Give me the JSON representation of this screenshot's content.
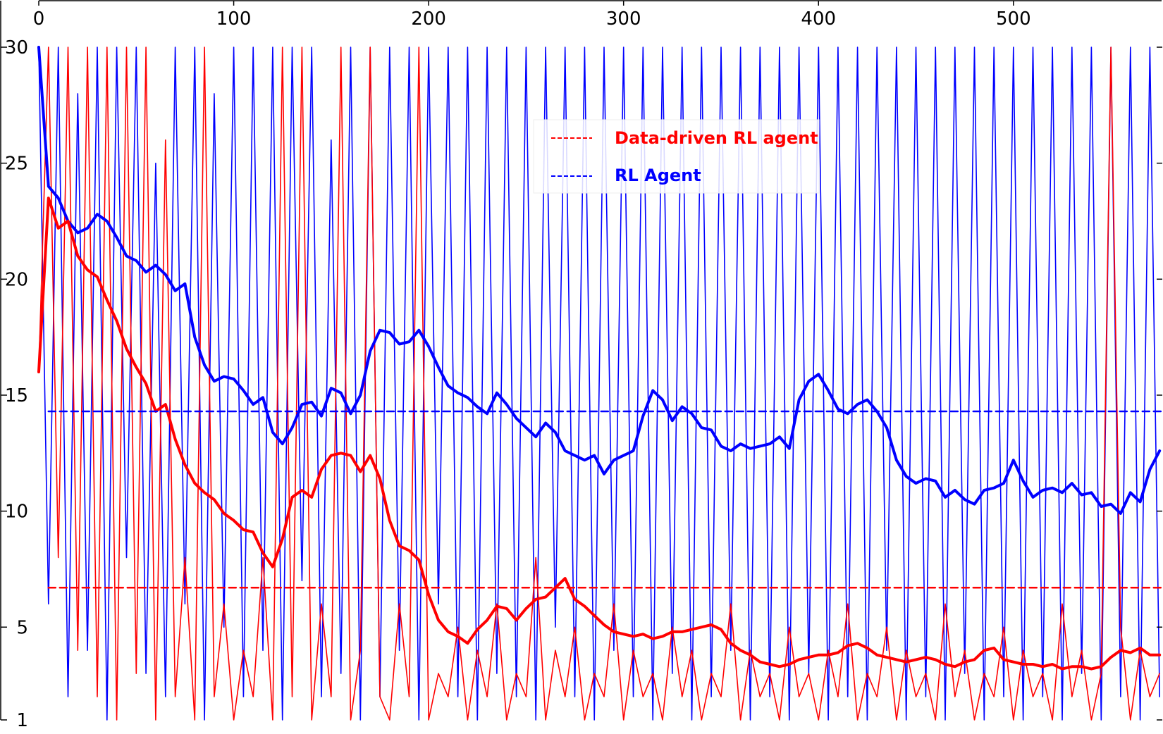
{
  "chart_data": {
    "type": "line",
    "title": "",
    "xlabel": "",
    "ylabel": "",
    "xlim": [
      0,
      576
    ],
    "ylim": [
      1,
      30
    ],
    "x_ticks": [
      0,
      100,
      200,
      300,
      400,
      500
    ],
    "y_ticks": [
      1,
      5,
      10,
      15,
      20,
      25,
      30
    ],
    "x_axis_position": "top",
    "grid": false,
    "legend": {
      "position": "upper-center",
      "entries": [
        {
          "label": "Data-driven RL agent",
          "color": "#ff0000",
          "style": "dashed"
        },
        {
          "label": "RL Agent",
          "color": "#0000ff",
          "style": "dashed"
        }
      ]
    },
    "series": [
      {
        "name": "RL Agent",
        "role": "raw",
        "color": "#0000ff",
        "style": "solid",
        "x": [
          0,
          5,
          10,
          15,
          20,
          25,
          30,
          35,
          40,
          45,
          50,
          55,
          60,
          65,
          70,
          75,
          80,
          85,
          90,
          95,
          100,
          105,
          110,
          115,
          120,
          125,
          130,
          135,
          140,
          145,
          150,
          155,
          160,
          165,
          170,
          175,
          180,
          185,
          190,
          195,
          200,
          205,
          210,
          215,
          220,
          225,
          230,
          235,
          240,
          245,
          250,
          255,
          260,
          265,
          270,
          275,
          280,
          285,
          290,
          295,
          300,
          305,
          310,
          315,
          320,
          325,
          330,
          335,
          340,
          345,
          350,
          355,
          360,
          365,
          370,
          375,
          380,
          385,
          390,
          395,
          400,
          405,
          410,
          415,
          420,
          425,
          430,
          435,
          440,
          445,
          450,
          455,
          460,
          465,
          470,
          475,
          480,
          485,
          490,
          495,
          500,
          505,
          510,
          515,
          520,
          525,
          530,
          535,
          540,
          545,
          550,
          555,
          560,
          565,
          570,
          575
        ],
        "values": [
          30,
          6,
          30,
          2,
          28,
          4,
          30,
          1,
          30,
          8,
          30,
          3,
          25,
          2,
          30,
          6,
          30,
          1,
          28,
          5,
          30,
          2,
          30,
          4,
          30,
          1,
          30,
          7,
          30,
          2,
          26,
          3,
          30,
          1,
          30,
          2,
          30,
          4,
          30,
          1,
          30,
          6,
          30,
          2,
          30,
          1,
          30,
          3,
          30,
          2,
          30,
          1,
          30,
          5,
          30,
          2,
          30,
          1,
          30,
          4,
          30,
          2,
          30,
          1,
          30,
          3,
          30,
          1,
          30,
          2,
          30,
          4,
          30,
          1,
          30,
          2,
          30,
          1,
          30,
          3,
          30,
          1,
          30,
          2,
          30,
          1,
          30,
          4,
          30,
          1,
          30,
          2,
          30,
          1,
          30,
          3,
          30,
          1,
          30,
          2,
          30,
          1,
          30,
          2,
          30,
          1,
          30,
          3,
          30,
          1,
          30,
          2,
          30,
          1,
          30,
          2
        ]
      },
      {
        "name": "Data-driven RL agent",
        "role": "raw",
        "color": "#ff0000",
        "style": "solid",
        "x": [
          0,
          5,
          10,
          15,
          20,
          25,
          30,
          35,
          40,
          45,
          50,
          55,
          60,
          65,
          70,
          75,
          80,
          85,
          90,
          95,
          100,
          105,
          110,
          115,
          120,
          125,
          130,
          135,
          140,
          145,
          150,
          155,
          160,
          165,
          170,
          175,
          180,
          185,
          190,
          195,
          200,
          205,
          210,
          215,
          220,
          225,
          230,
          235,
          240,
          245,
          250,
          255,
          260,
          265,
          270,
          275,
          280,
          285,
          290,
          295,
          300,
          305,
          310,
          315,
          320,
          325,
          330,
          335,
          340,
          345,
          350,
          355,
          360,
          365,
          370,
          375,
          380,
          385,
          390,
          395,
          400,
          405,
          410,
          415,
          420,
          425,
          430,
          435,
          440,
          445,
          450,
          455,
          460,
          465,
          470,
          475,
          480,
          485,
          490,
          495,
          500,
          505,
          510,
          515,
          520,
          525,
          530,
          535,
          540,
          545,
          550,
          555,
          560,
          565,
          570,
          575
        ],
        "values": [
          16,
          30,
          8,
          30,
          4,
          30,
          2,
          30,
          1,
          30,
          3,
          30,
          1,
          26,
          2,
          8,
          1,
          30,
          2,
          6,
          1,
          4,
          2,
          8,
          1,
          30,
          2,
          30,
          1,
          6,
          2,
          30,
          1,
          4,
          30,
          2,
          1,
          6,
          2,
          30,
          1,
          3,
          2,
          5,
          1,
          4,
          2,
          6,
          1,
          3,
          2,
          8,
          1,
          4,
          2,
          5,
          1,
          3,
          2,
          6,
          1,
          4,
          2,
          3,
          1,
          5,
          2,
          4,
          1,
          3,
          2,
          6,
          1,
          4,
          2,
          3,
          1,
          5,
          2,
          3,
          1,
          4,
          2,
          6,
          1,
          3,
          2,
          5,
          1,
          4,
          2,
          3,
          1,
          6,
          2,
          4,
          1,
          3,
          2,
          5,
          1,
          4,
          2,
          3,
          1,
          6,
          2,
          4,
          1,
          3,
          30,
          5,
          1,
          4,
          2,
          3
        ]
      },
      {
        "name": "RL Agent",
        "role": "moving-average",
        "color": "#0000ff",
        "style": "solid-thick",
        "x": [
          0,
          5,
          10,
          15,
          20,
          25,
          30,
          35,
          40,
          45,
          50,
          55,
          60,
          65,
          70,
          75,
          80,
          85,
          90,
          95,
          100,
          105,
          110,
          115,
          120,
          125,
          130,
          135,
          140,
          145,
          150,
          155,
          160,
          165,
          170,
          175,
          180,
          185,
          190,
          195,
          200,
          205,
          210,
          215,
          220,
          225,
          230,
          235,
          240,
          245,
          250,
          255,
          260,
          265,
          270,
          275,
          280,
          285,
          290,
          295,
          300,
          305,
          310,
          315,
          320,
          325,
          330,
          335,
          340,
          345,
          350,
          355,
          360,
          365,
          370,
          375,
          380,
          385,
          390,
          395,
          400,
          405,
          410,
          415,
          420,
          425,
          430,
          435,
          440,
          445,
          450,
          455,
          460,
          465,
          470,
          475,
          480,
          485,
          490,
          495,
          500,
          505,
          510,
          515,
          520,
          525,
          530,
          535,
          540,
          545,
          550,
          555,
          560,
          565,
          570,
          575
        ],
        "values": [
          30,
          24,
          23.5,
          22.5,
          22,
          22.2,
          22.8,
          22.5,
          21.8,
          21,
          20.8,
          20.3,
          20.6,
          20.2,
          19.5,
          19.8,
          17.5,
          16.3,
          15.6,
          15.8,
          15.7,
          15.2,
          14.6,
          14.9,
          13.4,
          12.9,
          13.6,
          14.6,
          14.7,
          14.1,
          15.3,
          15.1,
          14.2,
          15,
          16.9,
          17.8,
          17.7,
          17.2,
          17.3,
          17.8,
          17.1,
          16.2,
          15.4,
          15.1,
          14.9,
          14.5,
          14.2,
          15.1,
          14.6,
          14,
          13.6,
          13.2,
          13.8,
          13.4,
          12.6,
          12.4,
          12.2,
          12.4,
          11.6,
          12.2,
          12.4,
          12.6,
          14.1,
          15.2,
          14.8,
          13.9,
          14.5,
          14.2,
          13.6,
          13.5,
          12.8,
          12.6,
          12.9,
          12.7,
          12.8,
          12.9,
          13.2,
          12.7,
          14.8,
          15.6,
          15.9,
          15.2,
          14.4,
          14.2,
          14.6,
          14.8,
          14.3,
          13.6,
          12.2,
          11.5,
          11.2,
          11.4,
          11.3,
          10.6,
          10.9,
          10.5,
          10.3,
          10.9,
          11,
          11.2,
          12.2,
          11.3,
          10.6,
          10.9,
          11,
          10.8,
          11.2,
          10.7,
          10.8,
          10.2,
          10.3,
          9.9,
          10.8,
          10.4,
          11.8,
          12.6
        ]
      },
      {
        "name": "Data-driven RL agent",
        "role": "moving-average",
        "color": "#ff0000",
        "style": "solid-thick",
        "x": [
          0,
          5,
          10,
          15,
          20,
          25,
          30,
          35,
          40,
          45,
          50,
          55,
          60,
          65,
          70,
          75,
          80,
          85,
          90,
          95,
          100,
          105,
          110,
          115,
          120,
          125,
          130,
          135,
          140,
          145,
          150,
          155,
          160,
          165,
          170,
          175,
          180,
          185,
          190,
          195,
          200,
          205,
          210,
          215,
          220,
          225,
          230,
          235,
          240,
          245,
          250,
          255,
          260,
          265,
          270,
          275,
          280,
          285,
          290,
          295,
          300,
          305,
          310,
          315,
          320,
          325,
          330,
          335,
          340,
          345,
          350,
          355,
          360,
          365,
          370,
          375,
          380,
          385,
          390,
          395,
          400,
          405,
          410,
          415,
          420,
          425,
          430,
          435,
          440,
          445,
          450,
          455,
          460,
          465,
          470,
          475,
          480,
          485,
          490,
          495,
          500,
          505,
          510,
          515,
          520,
          525,
          530,
          535,
          540,
          545,
          550,
          555,
          560,
          565,
          570,
          575
        ],
        "values": [
          16,
          23.5,
          22.2,
          22.5,
          21,
          20.4,
          20.1,
          19.1,
          18.2,
          17,
          16.2,
          15.5,
          14.3,
          14.6,
          13.1,
          12,
          11.2,
          10.8,
          10.5,
          9.9,
          9.6,
          9.2,
          9.1,
          8.2,
          7.6,
          8.8,
          10.6,
          10.9,
          10.6,
          11.8,
          12.4,
          12.5,
          12.4,
          11.7,
          12.4,
          11.4,
          9.6,
          8.5,
          8.3,
          7.9,
          6.4,
          5.3,
          4.8,
          4.6,
          4.3,
          4.9,
          5.3,
          5.9,
          5.8,
          5.3,
          5.8,
          6.2,
          6.3,
          6.7,
          7.1,
          6.2,
          5.9,
          5.5,
          5.1,
          4.8,
          4.7,
          4.6,
          4.7,
          4.5,
          4.6,
          4.8,
          4.8,
          4.9,
          5,
          5.1,
          4.9,
          4.3,
          4,
          3.8,
          3.5,
          3.4,
          3.3,
          3.4,
          3.6,
          3.7,
          3.8,
          3.8,
          3.9,
          4.2,
          4.3,
          4.1,
          3.8,
          3.7,
          3.6,
          3.5,
          3.6,
          3.7,
          3.6,
          3.4,
          3.3,
          3.5,
          3.6,
          4,
          4.1,
          3.6,
          3.5,
          3.4,
          3.4,
          3.3,
          3.4,
          3.2,
          3.3,
          3.3,
          3.2,
          3.3,
          3.7,
          4,
          3.9,
          4.1,
          3.8,
          3.8
        ]
      },
      {
        "name": "Data-driven RL agent",
        "role": "mean",
        "color": "#ff0000",
        "style": "dashed",
        "x": [
          5,
          576
        ],
        "values": [
          6.7,
          6.7
        ]
      },
      {
        "name": "RL Agent",
        "role": "mean",
        "color": "#0000ff",
        "style": "dashed",
        "x": [
          5,
          576
        ],
        "values": [
          14.3,
          14.3
        ]
      }
    ]
  }
}
